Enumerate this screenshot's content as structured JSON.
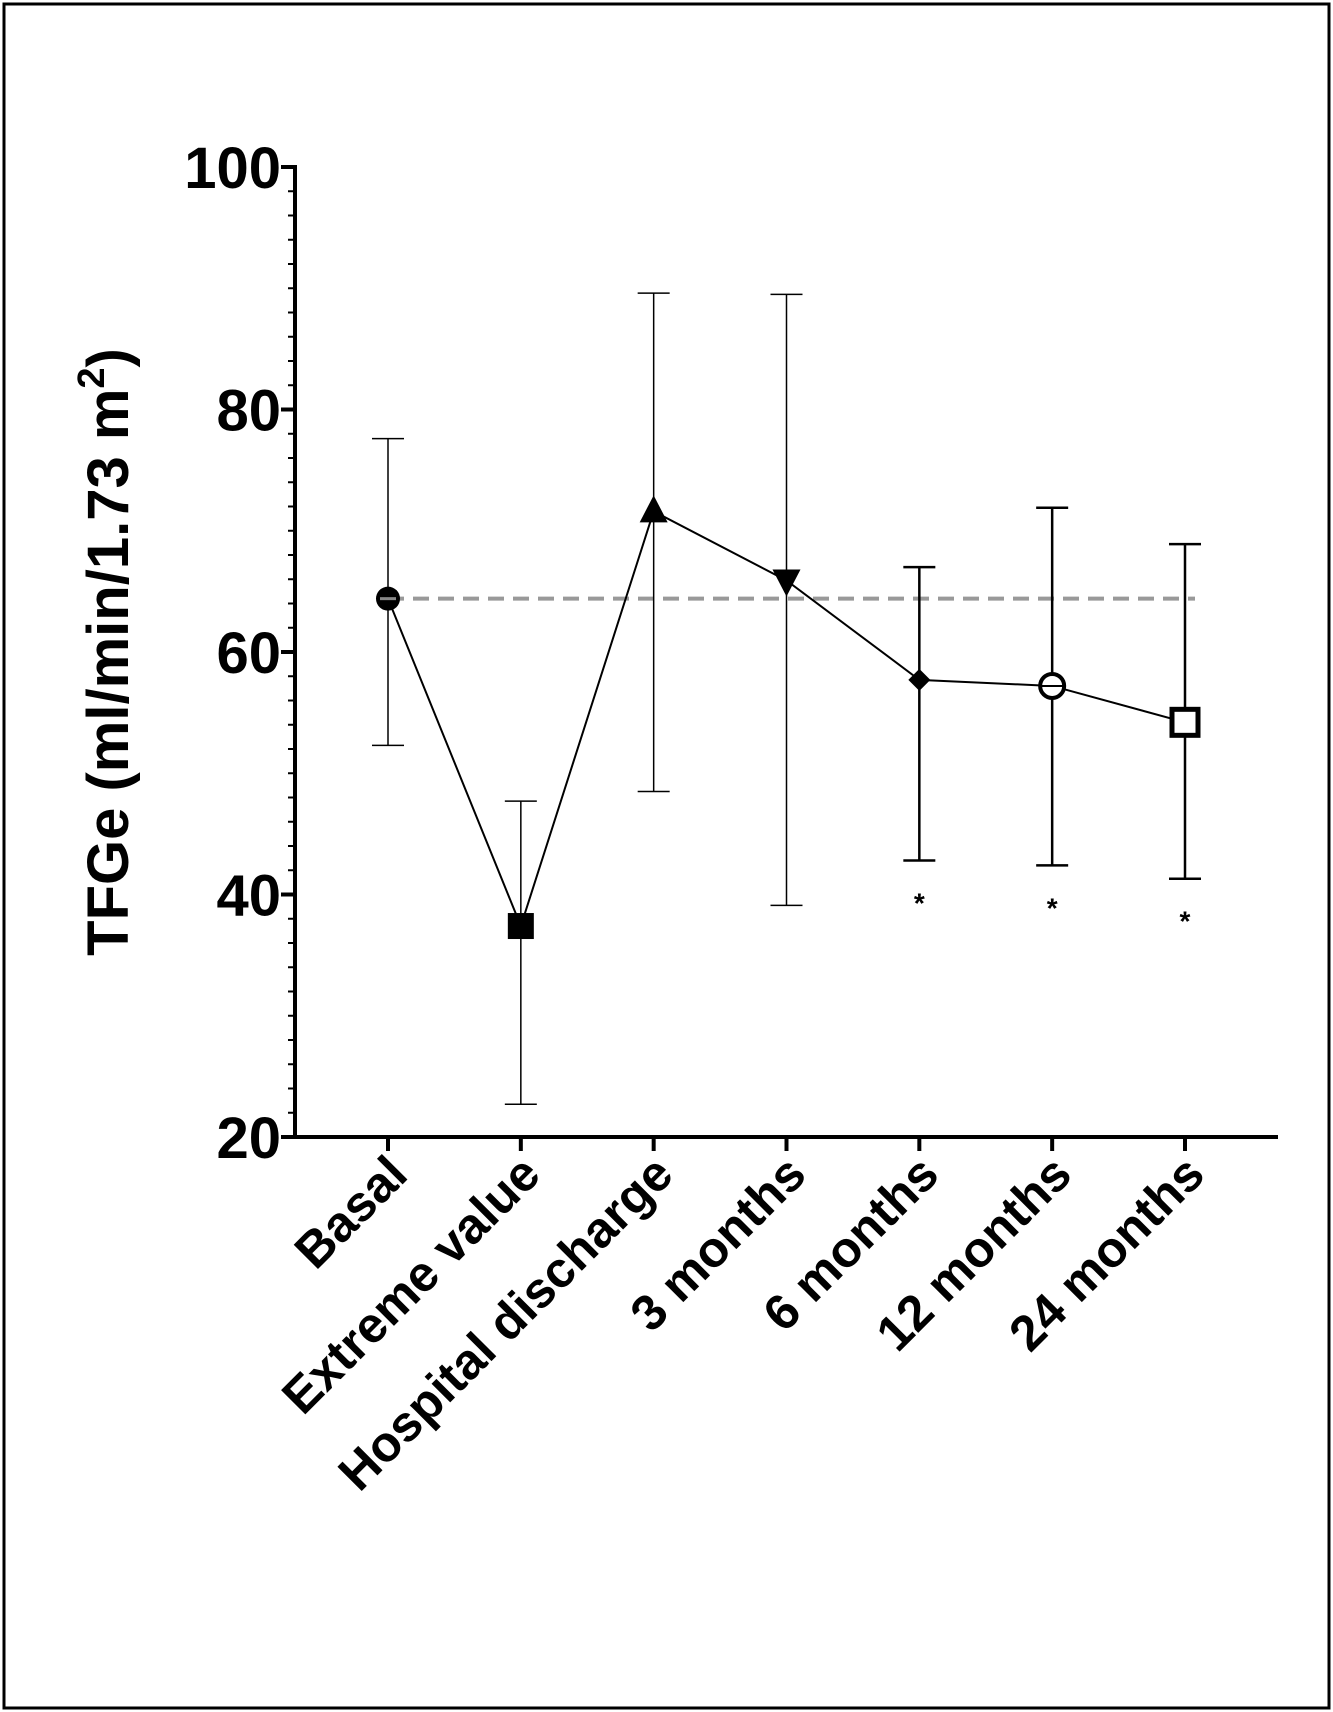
{
  "chart_data": {
    "type": "line",
    "title": "",
    "xlabel": "",
    "ylabel": "TFGe (ml/min/1.73 m",
    "ylabel_superscript": "2",
    "ylabel_close": ")",
    "ylim": [
      20,
      100
    ],
    "yticks": [
      "20",
      "40",
      "60",
      "80",
      "100"
    ],
    "categories": [
      "Basal",
      "Extreme value",
      "Hospital discharge",
      "3 months",
      "6 months",
      "12 months",
      "24 months"
    ],
    "series": [
      {
        "name": "TFGe",
        "values": [
          64.4,
          37.4,
          71.6,
          65.9,
          57.7,
          57.2,
          54.2
        ],
        "upper": [
          77.6,
          47.7,
          89.6,
          89.5,
          67.0,
          71.9,
          68.9
        ],
        "lower": [
          52.3,
          22.7,
          48.5,
          39.1,
          42.8,
          42.4,
          41.3
        ],
        "markers": [
          "circle-half",
          "square-filled",
          "triangle-up",
          "triangle-down",
          "diamond",
          "circle-open-cross",
          "square-open"
        ]
      }
    ],
    "reference_line": {
      "value": 64.4,
      "style": "dashed",
      "color": "#999999"
    },
    "annotations": [
      {
        "category": "6 months",
        "text": "*"
      },
      {
        "category": "12 months",
        "text": "*"
      },
      {
        "category": "24 months",
        "text": "*"
      }
    ],
    "grid": false,
    "legend": "none"
  }
}
